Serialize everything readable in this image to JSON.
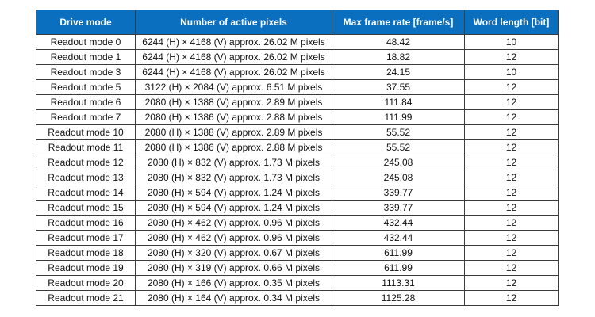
{
  "table": {
    "headers": [
      "Drive mode",
      "Number of active pixels",
      "Max frame rate [frame/s]",
      "Word length [bit]"
    ],
    "rows": [
      [
        "Readout mode 0",
        "6244 (H) × 4168 (V) approx. 26.02 M pixels",
        "48.42",
        "10"
      ],
      [
        "Readout mode 1",
        "6244 (H) × 4168 (V) approx. 26.02 M pixels",
        "18.82",
        "12"
      ],
      [
        "Readout mode 3",
        "6244 (H) × 4168 (V) approx. 26.02 M pixels",
        "24.15",
        "10"
      ],
      [
        "Readout mode 5",
        "3122 (H) × 2084 (V) approx. 6.51 M pixels",
        "37.55",
        "12"
      ],
      [
        "Readout mode 6",
        "2080 (H) × 1388 (V) approx. 2.89 M pixels",
        "111.84",
        "12"
      ],
      [
        "Readout mode 7",
        "2080 (H) × 1386 (V) approx. 2.88 M pixels",
        "111.99",
        "12"
      ],
      [
        "Readout mode 10",
        "2080 (H) × 1388 (V) approx. 2.89 M pixels",
        "55.52",
        "12"
      ],
      [
        "Readout mode 11",
        "2080 (H) × 1386 (V) approx. 2.88 M pixels",
        "55.52",
        "12"
      ],
      [
        "Readout mode 12",
        "2080 (H) × 832 (V) approx. 1.73 M pixels",
        "245.08",
        "12"
      ],
      [
        "Readout mode 13",
        "2080 (H) × 832 (V) approx. 1.73 M pixels",
        "245.08",
        "12"
      ],
      [
        "Readout mode 14",
        "2080 (H) × 594 (V) approx. 1.24 M pixels",
        "339.77",
        "12"
      ],
      [
        "Readout mode 15",
        "2080 (H) × 594 (V) approx. 1.24 M pixels",
        "339.77",
        "12"
      ],
      [
        "Readout mode 16",
        "2080 (H) × 462 (V) approx. 0.96 M pixels",
        "432.44",
        "12"
      ],
      [
        "Readout mode 17",
        "2080 (H) × 462 (V) approx. 0.96 M pixels",
        "432.44",
        "12"
      ],
      [
        "Readout mode 18",
        "2080 (H) × 320 (V) approx. 0.67 M pixels",
        "611.99",
        "12"
      ],
      [
        "Readout mode 19",
        "2080 (H) × 319 (V) approx. 0.66 M pixels",
        "611.99",
        "12"
      ],
      [
        "Readout mode 20",
        "2080 (H) × 166 (V) approx. 0.35 M pixels",
        "1113.31",
        "12"
      ],
      [
        "Readout mode 21",
        "2080 (H) × 164 (V) approx. 0.34 M pixels",
        "1125.28",
        "12"
      ]
    ]
  },
  "colors": {
    "header_background": "#0a6fbf",
    "header_text": "#ffffff",
    "border": "#3b3b3b"
  }
}
